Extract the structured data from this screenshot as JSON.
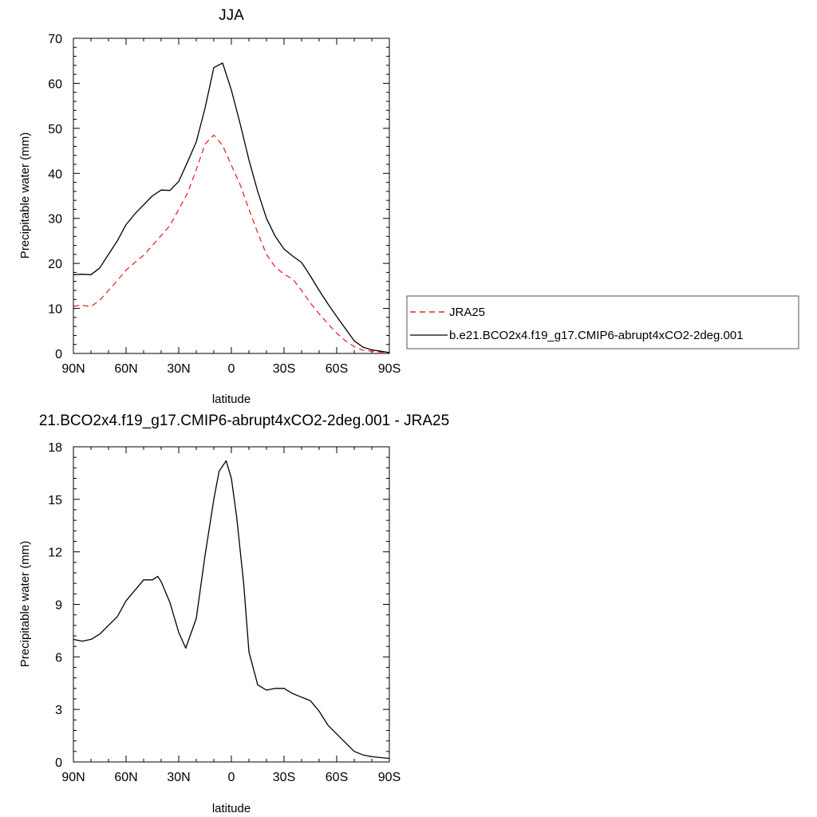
{
  "chart_data": [
    {
      "type": "line",
      "title": "JJA",
      "xlabel": "latitude",
      "ylabel": "Precipitable water (mm)",
      "xlim": [
        90,
        -90
      ],
      "ylim": [
        0,
        70
      ],
      "x_ticks": [
        90,
        60,
        30,
        0,
        -30,
        -60,
        -90
      ],
      "x_tick_labels": [
        "90N",
        "60N",
        "30N",
        "0",
        "30S",
        "60S",
        "90S"
      ],
      "y_ticks": [
        0,
        10,
        20,
        30,
        40,
        50,
        60,
        70
      ],
      "y_tick_labels": [
        "0",
        "10",
        "20",
        "30",
        "40",
        "50",
        "60",
        "70"
      ],
      "grid": false,
      "legend_position": "right",
      "series": [
        {
          "name": "JRA25",
          "color": "#e8262a",
          "dash": "dashed",
          "x": [
            90,
            85,
            80,
            75,
            70,
            65,
            60,
            55,
            50,
            45,
            40,
            35,
            30,
            25,
            20,
            15,
            10,
            5,
            0,
            -5,
            -10,
            -15,
            -20,
            -25,
            -30,
            -35,
            -40,
            -45,
            -50,
            -55,
            -60,
            -65,
            -70,
            -75,
            -80,
            -85,
            -90
          ],
          "y": [
            10.5,
            10.7,
            10.4,
            11.8,
            14.0,
            16.2,
            18.5,
            20.2,
            21.8,
            24.0,
            26.2,
            28.4,
            32.0,
            35.6,
            40.8,
            46.5,
            48.5,
            46.2,
            41.8,
            37.5,
            32.0,
            26.8,
            22.0,
            19.2,
            17.6,
            16.5,
            14.0,
            11.2,
            8.8,
            6.6,
            4.5,
            2.8,
            1.5,
            0.7,
            0.5,
            0.3,
            0.1
          ]
        },
        {
          "name": "b.e21.BCO2x4.f19_g17.CMIP6-abrupt4xCO2-2deg.001",
          "color": "#000000",
          "dash": "solid",
          "x": [
            90,
            85,
            80,
            75,
            70,
            65,
            60,
            55,
            50,
            45,
            40,
            35,
            30,
            25,
            20,
            15,
            10,
            5,
            0,
            -5,
            -10,
            -15,
            -20,
            -25,
            -30,
            -35,
            -40,
            -45,
            -50,
            -55,
            -60,
            -65,
            -70,
            -75,
            -80,
            -85,
            -90
          ],
          "y": [
            17.5,
            17.6,
            17.5,
            19.0,
            22.0,
            25.0,
            28.6,
            31.0,
            33.0,
            35.0,
            36.3,
            36.2,
            38.2,
            42.5,
            47.0,
            54.5,
            63.5,
            64.5,
            58.5,
            51.0,
            43.0,
            36.0,
            30.0,
            26.0,
            23.2,
            21.6,
            20.2,
            17.2,
            14.0,
            11.0,
            8.2,
            5.5,
            2.8,
            1.4,
            0.8,
            0.5,
            0.2
          ]
        }
      ]
    },
    {
      "type": "line",
      "title": "21.BCO2x4.f19_g17.CMIP6-abrupt4xCO2-2deg.001 - JRA25",
      "xlabel": "latitude",
      "ylabel": "Precipitable water (mm)",
      "xlim": [
        90,
        -90
      ],
      "ylim": [
        0,
        18
      ],
      "x_ticks": [
        90,
        60,
        30,
        0,
        -30,
        -60,
        -90
      ],
      "x_tick_labels": [
        "90N",
        "60N",
        "30N",
        "0",
        "30S",
        "60S",
        "90S"
      ],
      "y_ticks": [
        0,
        3,
        6,
        9,
        12,
        15,
        18
      ],
      "y_tick_labels": [
        "0",
        "3",
        "6",
        "9",
        "12",
        "15",
        "18"
      ],
      "grid": false,
      "series": [
        {
          "color": "#000000",
          "dash": "solid",
          "x": [
            90,
            85,
            80,
            75,
            70,
            65,
            60,
            55,
            50,
            45,
            42,
            40,
            35,
            30,
            26,
            20,
            15,
            10,
            7,
            3,
            0,
            -3,
            -7,
            -10,
            -15,
            -20,
            -25,
            -30,
            -35,
            -40,
            -45,
            -50,
            -55,
            -60,
            -65,
            -70,
            -75,
            -80,
            -85,
            -90
          ],
          "y": [
            7.0,
            6.9,
            7.0,
            7.3,
            7.8,
            8.3,
            9.2,
            9.8,
            10.4,
            10.4,
            10.6,
            10.3,
            9.1,
            7.4,
            6.5,
            8.2,
            11.8,
            15.0,
            16.6,
            17.2,
            16.2,
            14.0,
            10.2,
            6.3,
            4.4,
            4.1,
            4.2,
            4.2,
            3.9,
            3.7,
            3.5,
            2.9,
            2.1,
            1.6,
            1.1,
            0.6,
            0.4,
            0.3,
            0.25,
            0.2
          ]
        }
      ]
    }
  ],
  "legend": {
    "items": [
      {
        "label": "JRA25",
        "color": "#e8262a",
        "dash": "dashed"
      },
      {
        "label": "b.e21.BCO2x4.f19_g17.CMIP6-abrupt4xCO2-2deg.001",
        "color": "#000000",
        "dash": "solid"
      }
    ]
  }
}
